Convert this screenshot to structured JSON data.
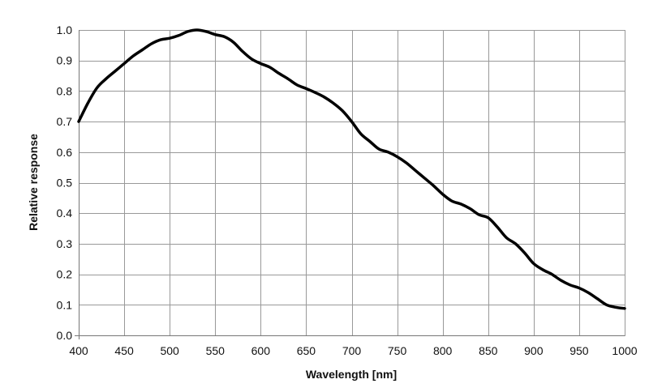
{
  "chart_data": {
    "type": "line",
    "title": "",
    "xlabel": "Wavelength [nm]",
    "ylabel": "Relative response",
    "xlim": [
      400,
      1000
    ],
    "ylim": [
      0,
      1.0
    ],
    "x_ticks": [
      400,
      450,
      500,
      550,
      600,
      650,
      700,
      750,
      800,
      850,
      900,
      950,
      1000
    ],
    "x_tick_labels": [
      "400",
      "450",
      "500",
      "550",
      "600",
      "650",
      "700",
      "750",
      "800",
      "850",
      "900",
      "950",
      "1000"
    ],
    "y_ticks": [
      0,
      0.1,
      0.2,
      0.3,
      0.4,
      0.5,
      0.6,
      0.7,
      0.8,
      0.9,
      1.0
    ],
    "y_tick_labels": [
      "0.0",
      "0.1",
      "0.2",
      "0.3",
      "0.4",
      "0.5",
      "0.6",
      "0.7",
      "0.8",
      "0.9",
      "1.0"
    ],
    "grid": true,
    "legend": "none",
    "line_color": "#000000",
    "grid_color": "#999999",
    "series": [
      {
        "x": [
          400,
          410,
          420,
          430,
          440,
          450,
          460,
          470,
          480,
          490,
          500,
          510,
          520,
          530,
          540,
          550,
          560,
          570,
          580,
          590,
          600,
          610,
          620,
          630,
          640,
          650,
          660,
          670,
          680,
          690,
          700,
          710,
          720,
          730,
          740,
          750,
          760,
          770,
          780,
          790,
          800,
          810,
          820,
          830,
          840,
          850,
          860,
          870,
          880,
          890,
          900,
          910,
          920,
          930,
          940,
          950,
          960,
          970,
          980,
          990,
          1000
        ],
        "y": [
          0.7,
          0.76,
          0.81,
          0.84,
          0.865,
          0.89,
          0.915,
          0.935,
          0.955,
          0.968,
          0.973,
          0.982,
          0.995,
          1.0,
          0.995,
          0.985,
          0.978,
          0.96,
          0.93,
          0.905,
          0.89,
          0.878,
          0.858,
          0.84,
          0.82,
          0.808,
          0.795,
          0.78,
          0.76,
          0.735,
          0.7,
          0.66,
          0.635,
          0.61,
          0.6,
          0.585,
          0.565,
          0.54,
          0.515,
          0.49,
          0.462,
          0.44,
          0.43,
          0.415,
          0.395,
          0.385,
          0.355,
          0.32,
          0.3,
          0.27,
          0.235,
          0.215,
          0.2,
          0.18,
          0.165,
          0.155,
          0.14,
          0.12,
          0.1,
          0.092,
          0.088
        ]
      }
    ]
  }
}
